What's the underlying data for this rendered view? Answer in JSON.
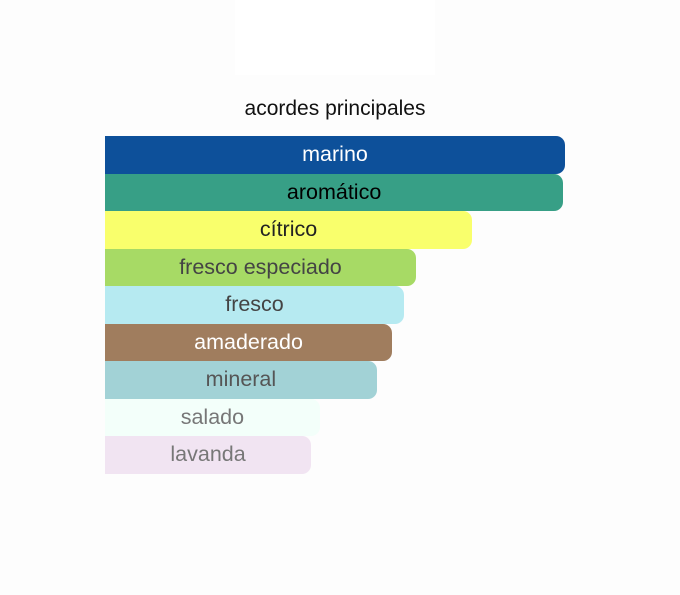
{
  "title": "acordes principales",
  "accords": [
    {
      "label": "marino",
      "percent": 100,
      "bg": "#0d509a",
      "color": "#ffffff"
    },
    {
      "label": "aromático",
      "percent": 99.6,
      "bg": "#379f86",
      "color": "#000000"
    },
    {
      "label": "cítrico",
      "percent": 79.8,
      "bg": "#f9ff6c",
      "color": "#222222"
    },
    {
      "label": "fresco especiado",
      "percent": 67.6,
      "bg": "#a7da65",
      "color": "#444444"
    },
    {
      "label": "fresco",
      "percent": 65.0,
      "bg": "#b6eaf1",
      "color": "#444444"
    },
    {
      "label": "amaderado",
      "percent": 62.4,
      "bg": "#a07d5e",
      "color": "#ffffff"
    },
    {
      "label": "mineral",
      "percent": 59.1,
      "bg": "#a2d2d6",
      "color": "#555555"
    },
    {
      "label": "salado",
      "percent": 46.7,
      "bg": "#f3fffa",
      "color": "#777777"
    },
    {
      "label": "lavanda",
      "percent": 44.8,
      "bg": "#f1e4f2",
      "color": "#777777"
    }
  ]
}
